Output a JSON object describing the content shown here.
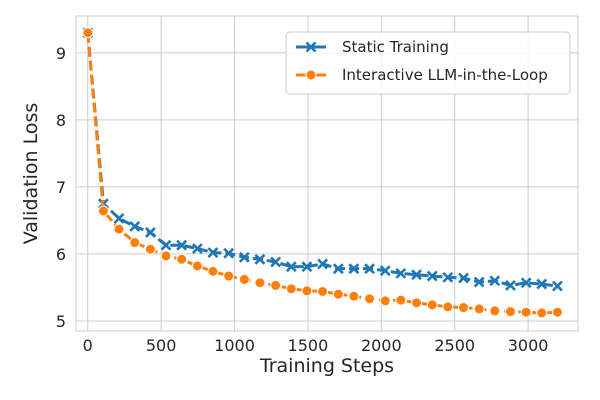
{
  "chart_data": {
    "type": "line",
    "title": "",
    "xlabel": "Training Steps",
    "ylabel": "Validation Loss",
    "xlim": [
      -80,
      3340
    ],
    "ylim": [
      4.85,
      9.55
    ],
    "xticks": [
      0,
      500,
      1000,
      1500,
      2000,
      2500,
      3000
    ],
    "yticks": [
      5,
      6,
      7,
      8,
      9
    ],
    "grid": true,
    "legend_position": "top-right",
    "x": [
      0,
      107,
      213,
      320,
      427,
      533,
      640,
      747,
      853,
      960,
      1067,
      1173,
      1280,
      1387,
      1493,
      1600,
      1707,
      1813,
      1920,
      2027,
      2133,
      2240,
      2347,
      2453,
      2560,
      2667,
      2773,
      2880,
      2987,
      3093,
      3200
    ],
    "series": [
      {
        "name": "Static Training",
        "color": "#1f77b4",
        "marker": "x",
        "values": [
          9.3,
          6.75,
          6.53,
          6.41,
          6.32,
          6.13,
          6.13,
          6.08,
          6.02,
          6.01,
          5.95,
          5.92,
          5.88,
          5.81,
          5.81,
          5.85,
          5.78,
          5.78,
          5.78,
          5.75,
          5.71,
          5.69,
          5.67,
          5.65,
          5.64,
          5.58,
          5.6,
          5.53,
          5.57,
          5.55,
          5.52
        ]
      },
      {
        "name": "Interactive LLM-in-the-Loop",
        "color": "#ff7f0e",
        "marker": "o",
        "values": [
          9.3,
          6.64,
          6.37,
          6.17,
          6.07,
          5.97,
          5.92,
          5.82,
          5.74,
          5.67,
          5.62,
          5.57,
          5.53,
          5.48,
          5.45,
          5.44,
          5.4,
          5.37,
          5.33,
          5.3,
          5.31,
          5.27,
          5.24,
          5.21,
          5.2,
          5.18,
          5.15,
          5.14,
          5.13,
          5.12,
          5.13
        ]
      }
    ]
  }
}
